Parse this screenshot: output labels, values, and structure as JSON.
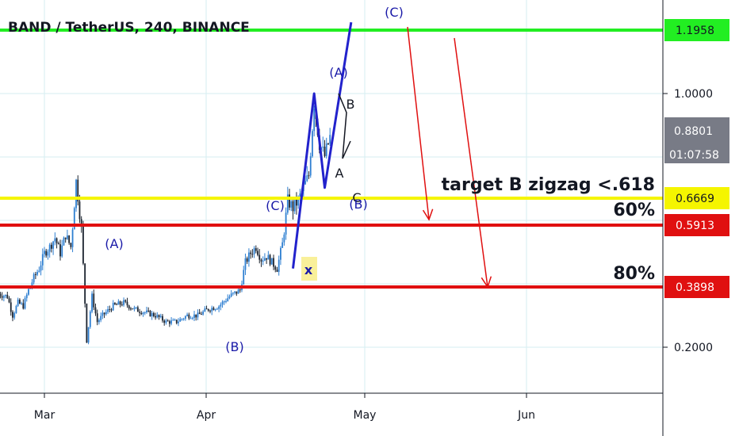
{
  "title": "BAND / TetherUS, 240, BINANCE",
  "colors": {
    "candle_up": "#2e7fd1",
    "candle_down": "#1c2430",
    "wave": "#2222cc",
    "arrow": "#e01010",
    "green_line": "#22ee22",
    "yellow_line": "#f5f500",
    "red_line": "#e01010",
    "grid": "#d6eef2"
  },
  "chart_data": {
    "type": "candlestick",
    "symbol": "BAND / TetherUS",
    "interval": "240",
    "exchange": "BINANCE",
    "x_ticks": [
      "Mar",
      "Apr",
      "May",
      "Jun"
    ],
    "y_ticks": [
      "1.0000",
      "0.2000"
    ],
    "ylim": [
      0.1,
      1.25
    ],
    "grid": true,
    "price_levels": [
      {
        "label": "1.1958",
        "value": 1.1958,
        "color": "#22ee22",
        "text_color": "#131722"
      },
      {
        "label": "0.6669",
        "value": 0.6669,
        "color": "#f5f500",
        "text_color": "#131722"
      },
      {
        "label": "0.5913",
        "value": 0.5913,
        "color": "#e01010",
        "text_color": "#ffffff"
      },
      {
        "label": "0.3898",
        "value": 0.3898,
        "color": "#e01010",
        "text_color": "#ffffff"
      }
    ],
    "current_price": {
      "label": "0.8801",
      "countdown": "01:07:58"
    },
    "price_path": [
      [
        "2020-02-21",
        0.37
      ],
      [
        "2020-02-23",
        0.36
      ],
      [
        "2020-02-24",
        0.3
      ],
      [
        "2020-02-25",
        0.34
      ],
      [
        "2020-02-26",
        0.33
      ],
      [
        "2020-02-27",
        0.38
      ],
      [
        "2020-02-28",
        0.42
      ],
      [
        "2020-02-29",
        0.45
      ],
      [
        "2020-03-01",
        0.5
      ],
      [
        "2020-03-02",
        0.52
      ],
      [
        "2020-03-03",
        0.55
      ],
      [
        "2020-03-04",
        0.5
      ],
      [
        "2020-03-05",
        0.56
      ],
      [
        "2020-03-06",
        0.52
      ],
      [
        "2020-03-07",
        0.72
      ],
      [
        "2020-03-08",
        0.58
      ],
      [
        "2020-03-09",
        0.22
      ],
      [
        "2020-03-10",
        0.36
      ],
      [
        "2020-03-11",
        0.28
      ],
      [
        "2020-03-12",
        0.3
      ],
      [
        "2020-03-14",
        0.33
      ],
      [
        "2020-03-16",
        0.34
      ],
      [
        "2020-03-18",
        0.32
      ],
      [
        "2020-03-20",
        0.31
      ],
      [
        "2020-03-22",
        0.3
      ],
      [
        "2020-03-24",
        0.28
      ],
      [
        "2020-03-26",
        0.28
      ],
      [
        "2020-03-28",
        0.3
      ],
      [
        "2020-03-30",
        0.3
      ],
      [
        "2020-04-01",
        0.32
      ],
      [
        "2020-04-03",
        0.33
      ],
      [
        "2020-04-05",
        0.36
      ],
      [
        "2020-04-07",
        0.38
      ],
      [
        "2020-04-08",
        0.47
      ],
      [
        "2020-04-09",
        0.5
      ],
      [
        "2020-04-10",
        0.52
      ],
      [
        "2020-04-11",
        0.48
      ],
      [
        "2020-04-12",
        0.49
      ],
      [
        "2020-04-13",
        0.47
      ],
      [
        "2020-04-14",
        0.45
      ],
      [
        "2020-04-15",
        0.53
      ],
      [
        "2020-04-16",
        0.66
      ],
      [
        "2020-04-17",
        0.64
      ],
      [
        "2020-04-18",
        0.66
      ],
      [
        "2020-04-19",
        0.7
      ],
      [
        "2020-04-20",
        0.74
      ],
      [
        "2020-04-21",
        0.97
      ],
      [
        "2020-04-22",
        0.84
      ],
      [
        "2020-04-23",
        0.8
      ],
      [
        "2020-04-24",
        0.86
      ]
    ],
    "annotations": [
      {
        "text": "target B zigzag <.618",
        "style": "bold"
      },
      {
        "text": "60%",
        "style": "bold"
      },
      {
        "text": "80%",
        "style": "bold"
      }
    ],
    "wave_labels": [
      {
        "text": "(A)"
      },
      {
        "text": "(B)"
      },
      {
        "text": "(C)"
      },
      {
        "text": "x"
      },
      {
        "text": "(A)"
      },
      {
        "text": "B"
      },
      {
        "text": "A"
      },
      {
        "text": "C"
      },
      {
        "text": "(B)"
      },
      {
        "text": "(C)"
      }
    ],
    "projection_path": [
      [
        "2020-04-17",
        0.45
      ],
      [
        "2020-04-21",
        1.0
      ],
      [
        "2020-04-23",
        0.7
      ],
      [
        "2020-04-28",
        1.22
      ]
    ]
  }
}
